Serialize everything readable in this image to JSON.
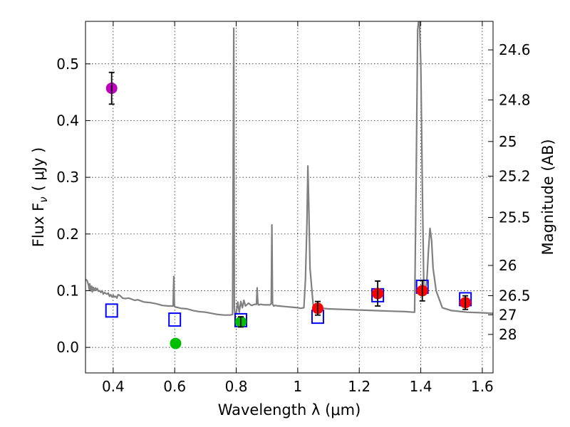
{
  "chart_data": {
    "type": "scatter",
    "title": "",
    "xlabel": "Wavelength  λ (μm)",
    "ylabel": "Flux  F",
    "ylabel_sub": "ν",
    "ylabel_unit": "( μJy )",
    "y2label": "Magnitude (AB)",
    "xlim": [
      0.31,
      1.635
    ],
    "ylim": [
      -0.045,
      0.575
    ],
    "grid": true,
    "x_ticks": [
      0.4,
      0.6,
      0.8,
      1.0,
      1.2,
      1.4,
      1.6
    ],
    "x_tick_labels": [
      "0.4",
      "0.6",
      "0.8",
      "1",
      "1.2",
      "1.4",
      "1.6"
    ],
    "y_ticks": [
      0.0,
      0.1,
      0.2,
      0.3,
      0.4,
      0.5
    ],
    "y_tick_labels": [
      "0.0",
      "0.1",
      "0.2",
      "0.3",
      "0.4",
      "0.5"
    ],
    "y2_ticks": [
      {
        "flux": 0.5247,
        "label": "24.6"
      },
      {
        "flux": 0.4365,
        "label": "24.8"
      },
      {
        "flux": 0.3631,
        "label": "25"
      },
      {
        "flux": 0.302,
        "label": "25.2"
      },
      {
        "flux": 0.2291,
        "label": "25.5"
      },
      {
        "flux": 0.1445,
        "label": "26"
      },
      {
        "flux": 0.0912,
        "label": "26.5"
      },
      {
        "flux": 0.0575,
        "label": "27"
      },
      {
        "flux": 0.0229,
        "label": "28"
      }
    ],
    "colors": {
      "model": "#808080",
      "model_photometry": "#0000ff",
      "errorbar": "#000000",
      "purple": "#bf00bf",
      "green": "#00bf00",
      "red": "#ff0000"
    },
    "model_spectrum": {
      "x": [
        0.31,
        0.315,
        0.32,
        0.322,
        0.324,
        0.327,
        0.33,
        0.332,
        0.335,
        0.338,
        0.342,
        0.345,
        0.348,
        0.352,
        0.356,
        0.36,
        0.364,
        0.368,
        0.372,
        0.376,
        0.38,
        0.384,
        0.388,
        0.392,
        0.396,
        0.4,
        0.404,
        0.408,
        0.412,
        0.416,
        0.42,
        0.425,
        0.43,
        0.44,
        0.45,
        0.46,
        0.47,
        0.48,
        0.49,
        0.5,
        0.52,
        0.54,
        0.56,
        0.58,
        0.595,
        0.597,
        0.599,
        0.6,
        0.601,
        0.603,
        0.605,
        0.62,
        0.64,
        0.66,
        0.68,
        0.7,
        0.72,
        0.74,
        0.76,
        0.78,
        0.788,
        0.792,
        0.794,
        0.796,
        0.8,
        0.805,
        0.81,
        0.815,
        0.82,
        0.825,
        0.83,
        0.84,
        0.85,
        0.86,
        0.866,
        0.868,
        0.87,
        0.872,
        0.874,
        0.88,
        0.89,
        0.9,
        0.91,
        0.914,
        0.916,
        0.918,
        0.92,
        0.922,
        0.925,
        0.94,
        0.96,
        0.98,
        1.0,
        1.01,
        1.02,
        1.025,
        1.03,
        1.033,
        1.036,
        1.04,
        1.05,
        1.055,
        1.06,
        1.08,
        1.1,
        1.15,
        1.2,
        1.25,
        1.3,
        1.35,
        1.375,
        1.38,
        1.385,
        1.39,
        1.393,
        1.396,
        1.4,
        1.405,
        1.41,
        1.415,
        1.42,
        1.425,
        1.43,
        1.435,
        1.44,
        1.45,
        1.47,
        1.5,
        1.55,
        1.6,
        1.635
      ],
      "y": [
        0.12,
        0.118,
        0.11,
        0.102,
        0.112,
        0.1,
        0.108,
        0.098,
        0.106,
        0.1,
        0.105,
        0.101,
        0.104,
        0.099,
        0.1,
        0.097,
        0.1,
        0.094,
        0.097,
        0.095,
        0.094,
        0.096,
        0.09,
        0.093,
        0.089,
        0.092,
        0.089,
        0.09,
        0.087,
        0.093,
        0.092,
        0.09,
        0.087,
        0.086,
        0.087,
        0.085,
        0.083,
        0.084,
        0.082,
        0.08,
        0.079,
        0.077,
        0.074,
        0.073,
        0.073,
        0.125,
        0.075,
        0.072,
        0.072,
        0.071,
        0.071,
        0.069,
        0.068,
        0.065,
        0.063,
        0.062,
        0.06,
        0.058,
        0.057,
        0.057,
        0.058,
        0.563,
        0.07,
        0.058,
        0.06,
        0.08,
        0.062,
        0.081,
        0.07,
        0.083,
        0.073,
        0.078,
        0.074,
        0.076,
        0.076,
        0.105,
        0.08,
        0.075,
        0.075,
        0.076,
        0.075,
        0.075,
        0.075,
        0.078,
        0.216,
        0.076,
        0.075,
        0.073,
        0.074,
        0.073,
        0.072,
        0.071,
        0.07,
        0.069,
        0.07,
        0.12,
        0.22,
        0.32,
        0.25,
        0.14,
        0.075,
        0.071,
        0.07,
        0.069,
        0.068,
        0.067,
        0.066,
        0.065,
        0.064,
        0.063,
        0.062,
        0.062,
        0.3,
        0.56,
        0.575,
        0.575,
        0.5,
        0.29,
        0.1,
        0.1,
        0.12,
        0.17,
        0.21,
        0.19,
        0.14,
        0.1,
        0.07,
        0.065,
        0.062,
        0.061,
        0.06
      ]
    },
    "model_photometry": [
      {
        "x": 0.395,
        "y": 0.065
      },
      {
        "x": 0.6,
        "y": 0.049
      },
      {
        "x": 0.815,
        "y": 0.048
      },
      {
        "x": 1.065,
        "y": 0.054
      },
      {
        "x": 1.26,
        "y": 0.092
      },
      {
        "x": 1.405,
        "y": 0.107
      },
      {
        "x": 1.545,
        "y": 0.085
      }
    ],
    "observations": [
      {
        "x": 0.395,
        "y": 0.457,
        "err": 0.028,
        "color": "purple"
      },
      {
        "x": 0.603,
        "y": 0.007,
        "err": 0.0,
        "color": "green"
      },
      {
        "x": 0.815,
        "y": 0.045,
        "err": 0.009,
        "color": "green"
      },
      {
        "x": 1.065,
        "y": 0.069,
        "err": 0.012,
        "color": "red"
      },
      {
        "x": 1.26,
        "y": 0.095,
        "err": 0.022,
        "color": "red"
      },
      {
        "x": 1.405,
        "y": 0.1,
        "err": 0.018,
        "color": "red"
      },
      {
        "x": 1.545,
        "y": 0.079,
        "err": 0.012,
        "color": "red"
      }
    ]
  }
}
